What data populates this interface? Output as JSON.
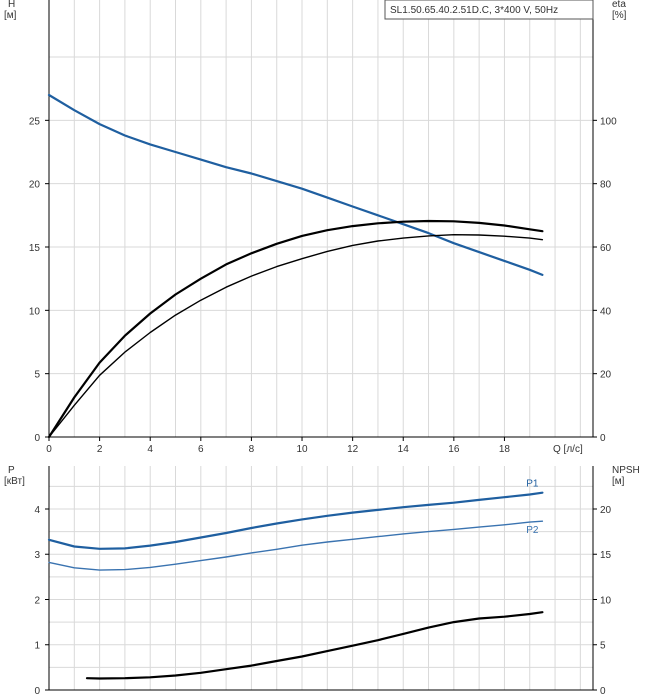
{
  "colors": {
    "head_curve": "#1f5fa0",
    "power_p1": "#1f5fa0",
    "power_p2": "#3a73b0",
    "efficiency": "#000000",
    "npsh": "#000000",
    "grid": "#d9d9d9",
    "axis": "#000000"
  },
  "chart_data": [
    {
      "type": "line",
      "model_label": "SL1.50.65.40.2.51D.C, 3*400 V, 50Hz",
      "xlabel": "Q [л/с]",
      "ylabel_left": [
        "H",
        "[м]"
      ],
      "ylabel_right": [
        "eta",
        "[%]"
      ],
      "xlim": [
        0,
        21.5
      ],
      "ylim_left": [
        0,
        34.5
      ],
      "ylim_right": [
        0,
        138
      ],
      "x_ticks": [
        0,
        2,
        4,
        6,
        8,
        10,
        12,
        14,
        16,
        18
      ],
      "y_ticks_left": [
        0,
        5,
        10,
        15,
        20,
        25
      ],
      "y_ticks_right": [
        0,
        20,
        40,
        60,
        80,
        100
      ],
      "grid": true,
      "series": [
        {
          "axis": "left",
          "x": [
            0,
            1,
            2,
            3,
            4,
            5,
            6,
            7,
            8,
            9,
            10,
            11,
            12,
            13,
            14,
            15,
            16,
            17,
            18,
            19,
            19.5
          ],
          "values": [
            27,
            25.8,
            24.7,
            23.8,
            23.1,
            22.5,
            21.9,
            21.3,
            20.8,
            20.2,
            19.6,
            18.9,
            18.2,
            17.5,
            16.8,
            16.1,
            15.3,
            14.6,
            13.9,
            13.2,
            12.8
          ]
        },
        {
          "axis": "right",
          "x": [
            0,
            1,
            2,
            3,
            4,
            5,
            6,
            7,
            8,
            9,
            10,
            11,
            12,
            13,
            14,
            15,
            16,
            17,
            18,
            19,
            19.5
          ],
          "values": [
            0,
            10,
            19.5,
            26.8,
            33,
            38.5,
            43.2,
            47.3,
            50.8,
            53.8,
            56.3,
            58.6,
            60.5,
            61.9,
            62.8,
            63.5,
            63.9,
            63.8,
            63.4,
            62.8,
            62.3
          ]
        },
        {
          "axis": "right",
          "x": [
            0,
            1,
            2,
            3,
            4,
            5,
            6,
            7,
            8,
            9,
            10,
            11,
            12,
            13,
            14,
            15,
            16,
            17,
            18,
            19,
            19.5
          ],
          "values": [
            0,
            12.5,
            23.5,
            32,
            39,
            45,
            50,
            54.5,
            58,
            61,
            63.5,
            65.3,
            66.6,
            67.5,
            68,
            68.2,
            68.1,
            67.6,
            66.8,
            65.6,
            65
          ]
        }
      ]
    },
    {
      "type": "line",
      "xlabel": "",
      "ylabel_left": [
        "P",
        "[кВт]"
      ],
      "ylabel_right": [
        "NPSH",
        "[м]"
      ],
      "xlim": [
        0,
        21.5
      ],
      "ylim_left": [
        0,
        4.95
      ],
      "ylim_right": [
        0,
        24.75
      ],
      "y_ticks_left": [
        0,
        1,
        2,
        3,
        4
      ],
      "y_ticks_right": [
        0,
        5,
        10,
        15,
        20
      ],
      "grid": true,
      "series": [
        {
          "name": "P1",
          "axis": "left",
          "x": [
            0,
            1,
            2,
            3,
            4,
            5,
            6,
            7,
            8,
            9,
            10,
            11,
            12,
            13,
            14,
            15,
            16,
            17,
            18,
            19,
            19.5
          ],
          "values": [
            3.32,
            3.17,
            3.12,
            3.13,
            3.19,
            3.27,
            3.37,
            3.47,
            3.58,
            3.68,
            3.77,
            3.85,
            3.92,
            3.98,
            4.04,
            4.09,
            4.14,
            4.2,
            4.26,
            4.32,
            4.36
          ]
        },
        {
          "name": "P2",
          "axis": "left",
          "x": [
            0,
            1,
            2,
            3,
            4,
            5,
            6,
            7,
            8,
            9,
            10,
            11,
            12,
            13,
            14,
            15,
            16,
            17,
            18,
            19,
            19.5
          ],
          "values": [
            2.82,
            2.7,
            2.65,
            2.66,
            2.71,
            2.78,
            2.86,
            2.94,
            3.03,
            3.11,
            3.2,
            3.27,
            3.33,
            3.39,
            3.45,
            3.5,
            3.55,
            3.6,
            3.65,
            3.71,
            3.73
          ]
        },
        {
          "axis": "right",
          "x": [
            1.5,
            2,
            3,
            4,
            5,
            6,
            7,
            8,
            9,
            10,
            11,
            12,
            13,
            14,
            15,
            16,
            17,
            18,
            19,
            19.5
          ],
          "values": [
            1.3,
            1.27,
            1.3,
            1.4,
            1.6,
            1.9,
            2.3,
            2.7,
            3.2,
            3.7,
            4.3,
            4.9,
            5.5,
            6.2,
            6.9,
            7.5,
            7.9,
            8.1,
            8.4,
            8.6
          ]
        }
      ]
    }
  ]
}
